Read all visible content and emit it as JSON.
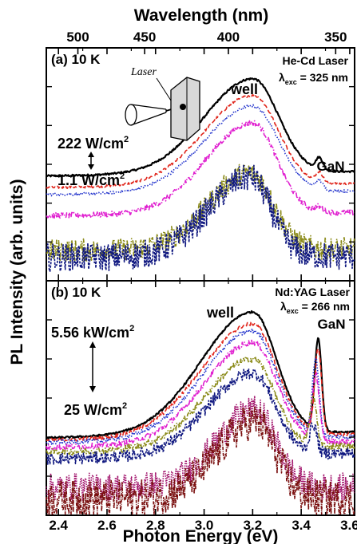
{
  "figure": {
    "top_axis_label": "Wavelength (nm)",
    "top_ticks": [
      {
        "label": "500",
        "energy": 2.48
      },
      {
        "label": "450",
        "energy": 2.755
      },
      {
        "label": "400",
        "energy": 3.1
      },
      {
        "label": "350",
        "energy": 3.542
      }
    ],
    "xlabel": "Photon Energy (eV)",
    "ylabel": "PL Intensity (arb. units)",
    "xlim": [
      2.35,
      3.62
    ],
    "xticks": [
      2.4,
      2.6,
      2.8,
      3.0,
      3.2,
      3.4,
      3.6
    ],
    "xtick_labels": [
      "2.4",
      "2.6",
      "2.8",
      "3.0",
      "3.2",
      "3.4",
      "3.6"
    ]
  },
  "chart_data": [
    {
      "type": "line",
      "panel_label": "(a) 10 K",
      "laser_line1": "He-Cd Laser",
      "laser_line2": "λexc = 325 nm",
      "laser_symbol": "λ",
      "laser_sub": "exc",
      "laser_value": " = 325 nm",
      "inset_label": "Laser",
      "well_label": "well",
      "gan_label": "GaN",
      "power_high": "222 W/cm2",
      "power_high_base": "222 W/cm",
      "power_low": "1.1 W/cm2",
      "power_low_base": "1.1 W/cm",
      "power_exp": "2",
      "ylim": [
        0,
        1
      ],
      "series": [
        {
          "color": "#000000",
          "dash": "",
          "noise": 0.004,
          "offset": 0.45,
          "peak_amp": 0.405,
          "peak_e": 3.2,
          "width_lo": 0.28,
          "width_hi": 0.15,
          "gan_amp": 0.05,
          "tail": 0.015
        },
        {
          "color": "#e0251b",
          "dash": "6,3",
          "noise": 0.005,
          "offset": 0.4,
          "peak_amp": 0.385,
          "peak_e": 3.2,
          "width_lo": 0.28,
          "width_hi": 0.15,
          "gan_amp": 0.04,
          "tail": 0.013
        },
        {
          "color": "#2233cc",
          "dash": "1.5,2",
          "noise": 0.006,
          "offset": 0.37,
          "peak_amp": 0.37,
          "peak_e": 3.2,
          "width_lo": 0.28,
          "width_hi": 0.15,
          "gan_amp": 0.035,
          "tail": 0.012
        },
        {
          "color": "#e020d0",
          "dash": "7,2,1.5,2",
          "noise": 0.012,
          "offset": 0.28,
          "peak_amp": 0.39,
          "peak_e": 3.2,
          "width_lo": 0.27,
          "width_hi": 0.14,
          "gan_amp": 0.02,
          "tail": 0.01
        },
        {
          "color": "#8a8a18",
          "dash": "6,2,1.5,2,1.5,2",
          "noise": 0.05,
          "offset": 0.13,
          "peak_amp": 0.33,
          "peak_e": 3.19,
          "width_lo": 0.24,
          "width_hi": 0.13,
          "gan_amp": 0.0,
          "tail": 0.005
        },
        {
          "color": "#101880",
          "dash": "3,1.5",
          "noise": 0.06,
          "offset": 0.1,
          "peak_amp": 0.34,
          "peak_e": 3.19,
          "width_lo": 0.24,
          "width_hi": 0.12,
          "gan_amp": 0.0,
          "tail": 0.005
        }
      ]
    },
    {
      "type": "line",
      "panel_label": "(b) 10 K",
      "laser_line1": "Nd:YAG Laser",
      "laser_line2": "λexc = 266 nm",
      "laser_symbol": "λ",
      "laser_sub": "exc",
      "laser_value": " = 266 nm",
      "well_label": "well",
      "gan_label": "GaN",
      "power_high": "5.56 kW/cm2",
      "power_high_base": "5.56 kW/cm",
      "power_low": "25 W/cm2",
      "power_low_base": "25 W/cm",
      "power_exp": "2",
      "ylim": [
        0,
        1
      ],
      "series": [
        {
          "color": "#000000",
          "dash": "",
          "noise": 0.004,
          "offset": 0.33,
          "peak_amp": 0.52,
          "peak_e": 3.2,
          "width_lo": 0.3,
          "width_hi": 0.14,
          "gan_amp": 0.39,
          "gan_e": 3.47,
          "tail": 0.02
        },
        {
          "color": "#e0251b",
          "dash": "6,3",
          "noise": 0.008,
          "offset": 0.32,
          "peak_amp": 0.48,
          "peak_e": 3.2,
          "width_lo": 0.3,
          "width_hi": 0.14,
          "gan_amp": 0.36,
          "gan_e": 3.47,
          "tail": 0.02
        },
        {
          "color": "#2233cc",
          "dash": "1.5,2",
          "noise": 0.01,
          "offset": 0.31,
          "peak_amp": 0.46,
          "peak_e": 3.2,
          "width_lo": 0.29,
          "width_hi": 0.14,
          "gan_amp": 0.32,
          "gan_e": 3.46,
          "tail": 0.02
        },
        {
          "color": "#e020d0",
          "dash": "7,2,1.5,2",
          "noise": 0.012,
          "offset": 0.29,
          "peak_amp": 0.43,
          "peak_e": 3.2,
          "width_lo": 0.28,
          "width_hi": 0.14,
          "gan_amp": 0.28,
          "gan_e": 3.46,
          "tail": 0.02
        },
        {
          "color": "#8a8a18",
          "dash": "6,2,1.5,2,1.5,2",
          "noise": 0.015,
          "offset": 0.27,
          "peak_amp": 0.38,
          "peak_e": 3.2,
          "width_lo": 0.27,
          "width_hi": 0.13,
          "gan_amp": 0.2,
          "gan_e": 3.45,
          "tail": 0.02
        },
        {
          "color": "#101880",
          "dash": "3,1.5",
          "noise": 0.025,
          "offset": 0.24,
          "peak_amp": 0.35,
          "peak_e": 3.2,
          "width_lo": 0.26,
          "width_hi": 0.13,
          "gan_amp": 0.12,
          "gan_e": 3.45,
          "tail": 0.02
        },
        {
          "color": "#a0106a",
          "dash": "1.5,1.5",
          "noise": 0.06,
          "offset": 0.12,
          "peak_amp": 0.33,
          "peak_e": 3.21,
          "width_lo": 0.22,
          "width_hi": 0.12,
          "gan_amp": 0.0,
          "gan_e": 3.45,
          "tail": 0.0
        },
        {
          "color": "#7a1010",
          "dash": "4,1.5,1,1.5",
          "noise": 0.08,
          "offset": 0.07,
          "peak_amp": 0.33,
          "peak_e": 3.21,
          "width_lo": 0.22,
          "width_hi": 0.12,
          "gan_amp": 0.0,
          "gan_e": 3.45,
          "tail": 0.0
        }
      ]
    }
  ]
}
